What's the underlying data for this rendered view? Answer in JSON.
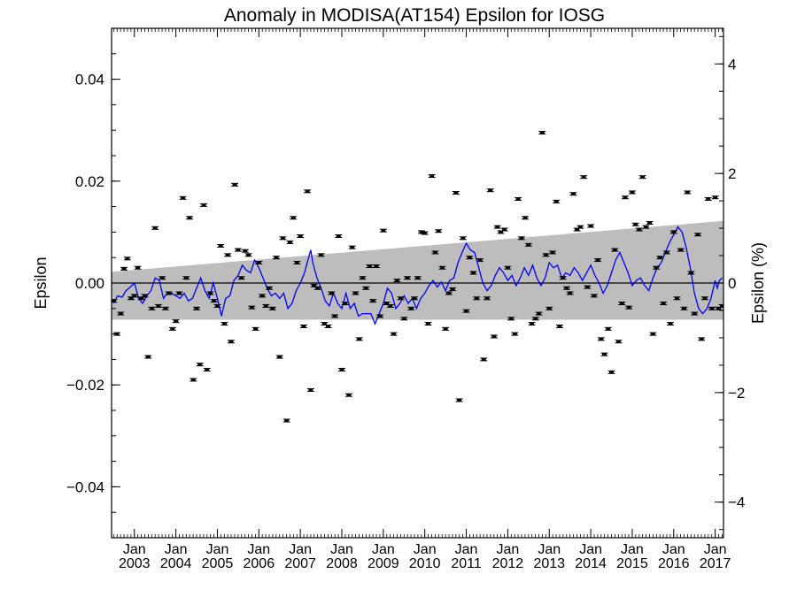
{
  "chart_data": {
    "type": "scatter",
    "title": "Anomaly in MODISA(AT154) Epsilon for IOSG",
    "ylabel": "Epsilon",
    "ylabel_right": "Epsilon (%)",
    "ylim": [
      -0.05,
      0.05
    ],
    "ylim_right": [
      -4.65,
      4.65
    ],
    "xlim": [
      2002.45,
      2017.2
    ],
    "y_ticks": [
      -0.04,
      -0.02,
      0.0,
      0.02,
      0.04
    ],
    "y_tick_labels": [
      "−0.04",
      "−0.02",
      "0.00",
      "0.02",
      "0.04"
    ],
    "y_right_ticks": [
      -4,
      -2,
      0,
      2,
      4
    ],
    "y_right_tick_labels": [
      "−4",
      "−2",
      "0",
      "2",
      "4"
    ],
    "x_ticks": [
      2003,
      2004,
      2005,
      2006,
      2007,
      2008,
      2009,
      2010,
      2011,
      2012,
      2013,
      2014,
      2015,
      2016,
      2017
    ],
    "x_tick_month": "Jan",
    "x_tick_years": [
      "2003",
      "2004",
      "2005",
      "2006",
      "2007",
      "2008",
      "2009",
      "2010",
      "2011",
      "2012",
      "2013",
      "2014",
      "2015",
      "2016",
      "2017"
    ],
    "zero_line": 0,
    "band": {
      "x": [
        2002.45,
        2017.2
      ],
      "upper": [
        0.0022,
        0.0122
      ],
      "lower": [
        -0.0072,
        -0.0072
      ],
      "color": "#bdbdbd"
    },
    "colors": {
      "points": "#000000",
      "smooth_line": "#0000ff",
      "band": "#bdbdbd",
      "zero_line": "#000000"
    },
    "points": [
      [
        2002.5,
        -0.0035
      ],
      [
        2002.58,
        -0.01
      ],
      [
        2002.67,
        -0.006
      ],
      [
        2002.75,
        0.0028
      ],
      [
        2002.83,
        0.0048
      ],
      [
        2002.92,
        -0.003
      ],
      [
        2003.0,
        -0.0025
      ],
      [
        2003.08,
        0.003
      ],
      [
        2003.17,
        -0.003
      ],
      [
        2003.25,
        -0.0025
      ],
      [
        2003.33,
        -0.0145
      ],
      [
        2003.42,
        -0.005
      ],
      [
        2003.5,
        0.0108
      ],
      [
        2003.58,
        -0.0045
      ],
      [
        2003.67,
        0.001
      ],
      [
        2003.75,
        -0.005
      ],
      [
        2003.83,
        -0.002
      ],
      [
        2003.92,
        -0.009
      ],
      [
        2004.0,
        -0.0075
      ],
      [
        2004.08,
        -0.002
      ],
      [
        2004.17,
        0.0167
      ],
      [
        2004.25,
        0.001
      ],
      [
        2004.33,
        0.0128
      ],
      [
        2004.42,
        -0.019
      ],
      [
        2004.5,
        -0.005
      ],
      [
        2004.58,
        -0.016
      ],
      [
        2004.67,
        0.0153
      ],
      [
        2004.75,
        -0.017
      ],
      [
        2004.83,
        -0.002
      ],
      [
        2004.92,
        -0.0035
      ],
      [
        2005.0,
        -0.0045
      ],
      [
        2005.08,
        0.0073
      ],
      [
        2005.17,
        -0.008
      ],
      [
        2005.25,
        0.0055
      ],
      [
        2005.33,
        -0.0115
      ],
      [
        2005.42,
        0.0193
      ],
      [
        2005.5,
        0.0065
      ],
      [
        2005.58,
        0.001
      ],
      [
        2005.67,
        0.0063
      ],
      [
        2005.75,
        0.0055
      ],
      [
        2005.83,
        -0.0048
      ],
      [
        2005.92,
        -0.009
      ],
      [
        2006.0,
        0.004
      ],
      [
        2006.08,
        -0.0025
      ],
      [
        2006.17,
        -0.0045
      ],
      [
        2006.25,
        -0.001
      ],
      [
        2006.33,
        -0.005
      ],
      [
        2006.42,
        0.005
      ],
      [
        2006.5,
        -0.0145
      ],
      [
        2006.58,
        0.0088
      ],
      [
        2006.67,
        -0.027
      ],
      [
        2006.75,
        0.008
      ],
      [
        2006.83,
        0.0128
      ],
      [
        2006.92,
        0.004
      ],
      [
        2007.0,
        0.0092
      ],
      [
        2007.08,
        -0.0085
      ],
      [
        2007.17,
        0.018
      ],
      [
        2007.25,
        -0.021
      ],
      [
        2007.33,
        -0.0005
      ],
      [
        2007.42,
        -0.001
      ],
      [
        2007.5,
        0.0055
      ],
      [
        2007.58,
        -0.008
      ],
      [
        2007.67,
        -0.0085
      ],
      [
        2007.75,
        -0.002
      ],
      [
        2007.83,
        -0.0065
      ],
      [
        2007.92,
        0.0092
      ],
      [
        2008.0,
        -0.017
      ],
      [
        2008.08,
        -0.004
      ],
      [
        2008.17,
        -0.022
      ],
      [
        2008.25,
        0.007
      ],
      [
        2008.33,
        -0.002
      ],
      [
        2008.42,
        -0.011
      ],
      [
        2008.5,
        0.001
      ],
      [
        2008.58,
        -0.001
      ],
      [
        2008.67,
        0.0033
      ],
      [
        2008.75,
        -0.0035
      ],
      [
        2008.83,
        0.0033
      ],
      [
        2008.92,
        -0.0065
      ],
      [
        2009.0,
        0.0103
      ],
      [
        2009.08,
        -0.004
      ],
      [
        2009.17,
        -0.0045
      ],
      [
        2009.25,
        -0.01
      ],
      [
        2009.33,
        0.0005
      ],
      [
        2009.42,
        -0.003
      ],
      [
        2009.5,
        -0.007
      ],
      [
        2009.58,
        0.001
      ],
      [
        2009.67,
        -0.005
      ],
      [
        2009.75,
        -0.003
      ],
      [
        2009.83,
        0.001
      ],
      [
        2009.92,
        0.01
      ],
      [
        2010.0,
        0.0098
      ],
      [
        2010.08,
        -0.008
      ],
      [
        2010.17,
        0.021
      ],
      [
        2010.25,
        0.006
      ],
      [
        2010.33,
        0.0102
      ],
      [
        2010.42,
        0.003
      ],
      [
        2010.5,
        -0.009
      ],
      [
        2010.58,
        -0.002
      ],
      [
        2010.67,
        -0.0012
      ],
      [
        2010.75,
        0.0177
      ],
      [
        2010.83,
        -0.023
      ],
      [
        2010.92,
        0.0088
      ],
      [
        2011.0,
        -0.0055
      ],
      [
        2011.08,
        0.005
      ],
      [
        2011.17,
        0.002
      ],
      [
        2011.25,
        -0.003
      ],
      [
        2011.33,
        0.0045
      ],
      [
        2011.42,
        -0.015
      ],
      [
        2011.5,
        -0.003
      ],
      [
        2011.58,
        0.0182
      ],
      [
        2011.67,
        -0.0105
      ],
      [
        2011.75,
        0.011
      ],
      [
        2011.83,
        0.01
      ],
      [
        2011.92,
        0.0105
      ],
      [
        2012.0,
        0.003
      ],
      [
        2012.08,
        -0.007
      ],
      [
        2012.17,
        -0.01
      ],
      [
        2012.25,
        0.0165
      ],
      [
        2012.33,
        0.0088
      ],
      [
        2012.42,
        0.0128
      ],
      [
        2012.5,
        0.0075
      ],
      [
        2012.58,
        -0.008
      ],
      [
        2012.67,
        -0.007
      ],
      [
        2012.75,
        -0.006
      ],
      [
        2012.83,
        0.0295
      ],
      [
        2012.92,
        0.0055
      ],
      [
        2013.0,
        -0.005
      ],
      [
        2013.08,
        0.006
      ],
      [
        2013.17,
        0.016
      ],
      [
        2013.25,
        -0.0085
      ],
      [
        2013.33,
        0.001
      ],
      [
        2013.42,
        -0.001
      ],
      [
        2013.5,
        -0.002
      ],
      [
        2013.58,
        0.0175
      ],
      [
        2013.67,
        0.0105
      ],
      [
        2013.75,
        0.011
      ],
      [
        2013.83,
        0.0208
      ],
      [
        2013.92,
        -0.0008
      ],
      [
        2014.0,
        0.0112
      ],
      [
        2014.08,
        -0.0025
      ],
      [
        2014.17,
        0.0045
      ],
      [
        2014.25,
        -0.011
      ],
      [
        2014.33,
        -0.014
      ],
      [
        2014.42,
        -0.009
      ],
      [
        2014.5,
        -0.0175
      ],
      [
        2014.58,
        0.0065
      ],
      [
        2014.67,
        -0.0115
      ],
      [
        2014.75,
        -0.004
      ],
      [
        2014.83,
        0.0168
      ],
      [
        2014.92,
        -0.0048
      ],
      [
        2015.0,
        0.0178
      ],
      [
        2015.08,
        0.0115
      ],
      [
        2015.17,
        0.0105
      ],
      [
        2015.25,
        0.0208
      ],
      [
        2015.33,
        0.011
      ],
      [
        2015.42,
        0.0118
      ],
      [
        2015.5,
        -0.01
      ],
      [
        2015.58,
        0.003
      ],
      [
        2015.67,
        0.005
      ],
      [
        2015.75,
        -0.004
      ],
      [
        2015.83,
        0.006
      ],
      [
        2015.92,
        -0.008
      ],
      [
        2016.0,
        0.01
      ],
      [
        2016.08,
        -0.003
      ],
      [
        2016.17,
        0.0065
      ],
      [
        2016.25,
        -0.005
      ],
      [
        2016.33,
        0.0178
      ],
      [
        2016.42,
        0.002
      ],
      [
        2016.5,
        -0.006
      ],
      [
        2016.58,
        0.0095
      ],
      [
        2016.67,
        -0.011
      ],
      [
        2016.75,
        -0.003
      ],
      [
        2016.83,
        0.0165
      ],
      [
        2016.92,
        -0.005
      ],
      [
        2017.0,
        0.0168
      ],
      [
        2017.08,
        -0.005
      ],
      [
        2017.17,
        -0.0045
      ]
    ],
    "smooth_line": [
      [
        2002.5,
        -0.004
      ],
      [
        2002.6,
        -0.0025
      ],
      [
        2002.7,
        -0.0028
      ],
      [
        2002.8,
        -0.0015
      ],
      [
        2002.9,
        -0.0008
      ],
      [
        2003.0,
        0.0
      ],
      [
        2003.1,
        -0.003
      ],
      [
        2003.2,
        -0.004
      ],
      [
        2003.3,
        -0.0025
      ],
      [
        2003.4,
        -0.0015
      ],
      [
        2003.5,
        0.001
      ],
      [
        2003.6,
        0.0005
      ],
      [
        2003.7,
        -0.003
      ],
      [
        2003.8,
        -0.002
      ],
      [
        2003.9,
        -0.002
      ],
      [
        2004.0,
        -0.0025
      ],
      [
        2004.1,
        -0.003
      ],
      [
        2004.2,
        -0.002
      ],
      [
        2004.3,
        -0.0035
      ],
      [
        2004.4,
        -0.003
      ],
      [
        2004.5,
        -0.001
      ],
      [
        2004.6,
        0.001
      ],
      [
        2004.7,
        -0.0015
      ],
      [
        2004.8,
        -0.003
      ],
      [
        2004.9,
        0.0
      ],
      [
        2005.0,
        -0.003
      ],
      [
        2005.1,
        -0.0065
      ],
      [
        2005.2,
        -0.003
      ],
      [
        2005.3,
        -0.0025
      ],
      [
        2005.4,
        0.0005
      ],
      [
        2005.5,
        0.0015
      ],
      [
        2005.6,
        0.0035
      ],
      [
        2005.7,
        0.0025
      ],
      [
        2005.8,
        0.002
      ],
      [
        2005.9,
        0.0045
      ],
      [
        2006.0,
        0.003
      ],
      [
        2006.1,
        0.001
      ],
      [
        2006.2,
        -0.001
      ],
      [
        2006.3,
        -0.0025
      ],
      [
        2006.4,
        -0.002
      ],
      [
        2006.5,
        -0.003
      ],
      [
        2006.6,
        -0.002
      ],
      [
        2006.7,
        -0.005
      ],
      [
        2006.8,
        -0.004
      ],
      [
        2006.9,
        -0.0015
      ],
      [
        2007.0,
        0.0
      ],
      [
        2007.1,
        0.002
      ],
      [
        2007.2,
        0.005
      ],
      [
        2007.25,
        0.0065
      ],
      [
        2007.3,
        0.004
      ],
      [
        2007.4,
        0.001
      ],
      [
        2007.5,
        -0.001
      ],
      [
        2007.6,
        -0.0035
      ],
      [
        2007.7,
        -0.0045
      ],
      [
        2007.8,
        -0.002
      ],
      [
        2007.9,
        -0.004
      ],
      [
        2008.0,
        -0.005
      ],
      [
        2008.1,
        -0.002
      ],
      [
        2008.2,
        -0.005
      ],
      [
        2008.3,
        -0.004
      ],
      [
        2008.4,
        -0.0065
      ],
      [
        2008.5,
        -0.006
      ],
      [
        2008.6,
        -0.006
      ],
      [
        2008.7,
        -0.006
      ],
      [
        2008.8,
        -0.008
      ],
      [
        2008.9,
        -0.006
      ],
      [
        2009.0,
        -0.004
      ],
      [
        2009.1,
        -0.001
      ],
      [
        2009.2,
        -0.002
      ],
      [
        2009.3,
        -0.005
      ],
      [
        2009.4,
        -0.004
      ],
      [
        2009.5,
        -0.0025
      ],
      [
        2009.6,
        -0.004
      ],
      [
        2009.7,
        -0.003
      ],
      [
        2009.8,
        -0.005
      ],
      [
        2009.9,
        -0.003
      ],
      [
        2010.0,
        -0.002
      ],
      [
        2010.1,
        -0.0005
      ],
      [
        2010.2,
        0.0005
      ],
      [
        2010.3,
        -0.0008
      ],
      [
        2010.4,
        0.0002
      ],
      [
        2010.5,
        -0.0015
      ],
      [
        2010.6,
        0.0005
      ],
      [
        2010.7,
        0.001
      ],
      [
        2010.8,
        0.004
      ],
      [
        2010.9,
        0.006
      ],
      [
        2011.0,
        0.0078
      ],
      [
        2011.1,
        0.0065
      ],
      [
        2011.2,
        0.006
      ],
      [
        2011.3,
        0.003
      ],
      [
        2011.4,
        0.0
      ],
      [
        2011.5,
        -0.0015
      ],
      [
        2011.6,
        -0.0005
      ],
      [
        2011.7,
        0.0015
      ],
      [
        2011.8,
        0.003
      ],
      [
        2011.9,
        0.002
      ],
      [
        2012.0,
        0.0005
      ],
      [
        2012.1,
        0.0015
      ],
      [
        2012.2,
        -0.0005
      ],
      [
        2012.3,
        0.001
      ],
      [
        2012.4,
        0.003
      ],
      [
        2012.5,
        0.0015
      ],
      [
        2012.6,
        0.0035
      ],
      [
        2012.7,
        0.001
      ],
      [
        2012.8,
        -0.0005
      ],
      [
        2012.9,
        0.001
      ],
      [
        2013.0,
        0.004
      ],
      [
        2013.1,
        0.003
      ],
      [
        2013.2,
        0.0035
      ],
      [
        2013.3,
        0.001
      ],
      [
        2013.4,
        0.002
      ],
      [
        2013.5,
        0.0015
      ],
      [
        2013.6,
        0.003
      ],
      [
        2013.7,
        0.002
      ],
      [
        2013.8,
        0.0005
      ],
      [
        2013.9,
        0.002
      ],
      [
        2014.0,
        0.0035
      ],
      [
        2014.1,
        0.0015
      ],
      [
        2014.2,
        0.0
      ],
      [
        2014.3,
        -0.002
      ],
      [
        2014.4,
        -0.0005
      ],
      [
        2014.5,
        0.002
      ],
      [
        2014.6,
        0.0045
      ],
      [
        2014.7,
        0.006
      ],
      [
        2014.8,
        0.004
      ],
      [
        2014.9,
        0.002
      ],
      [
        2015.0,
        -0.0005
      ],
      [
        2015.1,
        0.0005
      ],
      [
        2015.2,
        0.001
      ],
      [
        2015.3,
        -0.0005
      ],
      [
        2015.4,
        -0.0015
      ],
      [
        2015.5,
        0.001
      ],
      [
        2015.6,
        0.003
      ],
      [
        2015.7,
        0.004
      ],
      [
        2015.8,
        0.006
      ],
      [
        2015.9,
        0.008
      ],
      [
        2016.0,
        0.0095
      ],
      [
        2016.1,
        0.011
      ],
      [
        2016.2,
        0.01
      ],
      [
        2016.3,
        0.007
      ],
      [
        2016.4,
        0.003
      ],
      [
        2016.5,
        -0.002
      ],
      [
        2016.6,
        -0.005
      ],
      [
        2016.7,
        -0.006
      ],
      [
        2016.8,
        -0.005
      ],
      [
        2016.9,
        -0.003
      ],
      [
        2017.0,
        0.0005
      ],
      [
        2017.05,
        -0.001
      ],
      [
        2017.1,
        0.0005
      ],
      [
        2017.17,
        0.001
      ]
    ]
  }
}
